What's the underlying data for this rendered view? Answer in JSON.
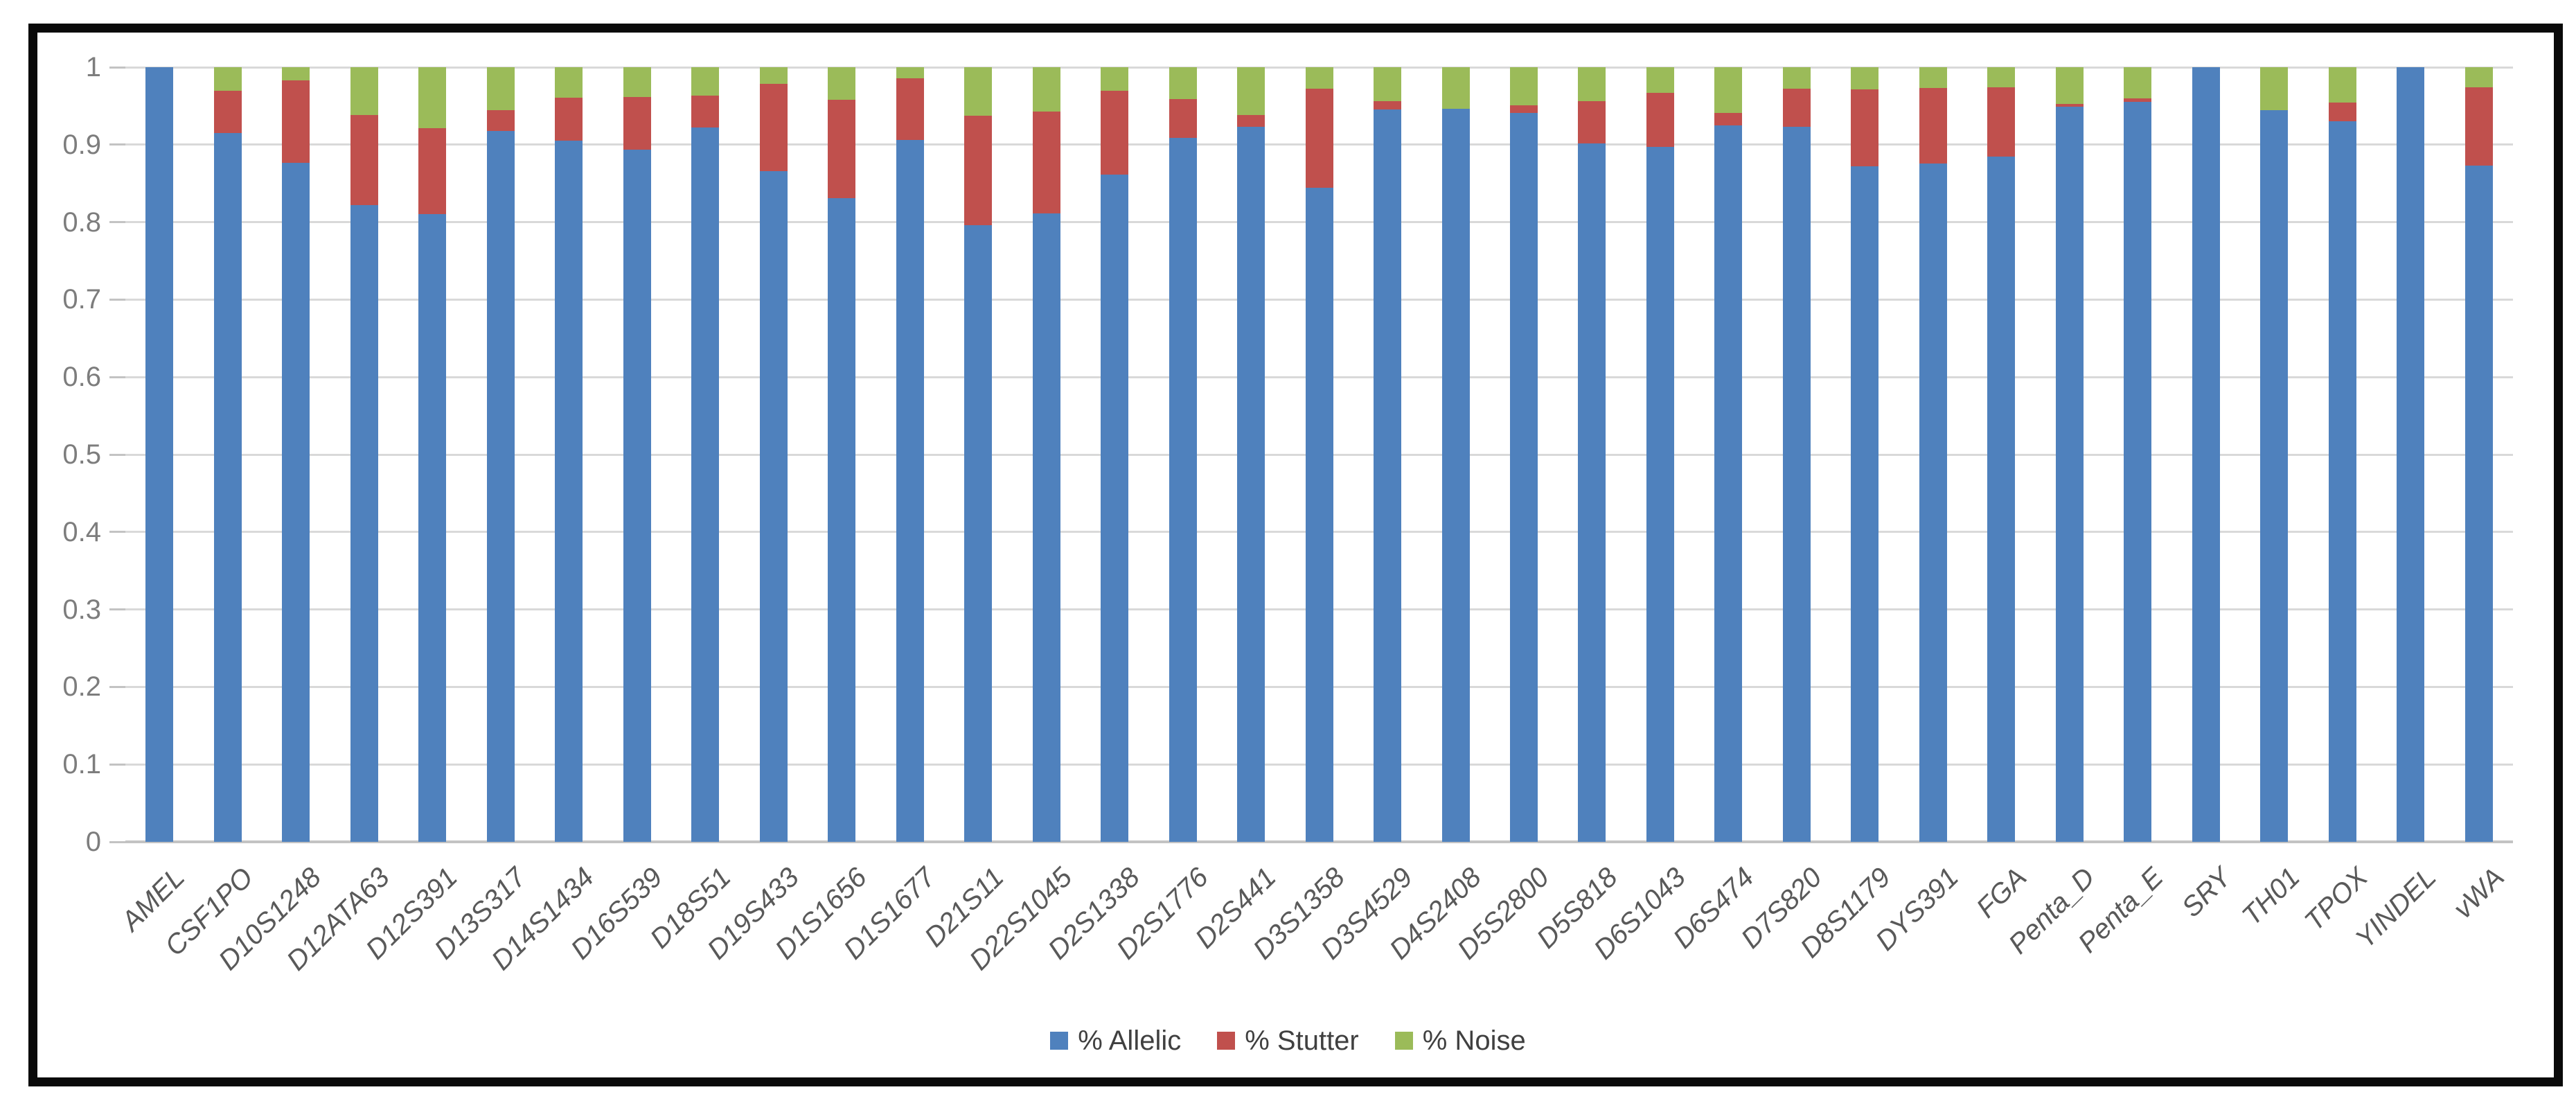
{
  "chart_data": {
    "type": "bar",
    "stacked": true,
    "title": "",
    "xlabel": "",
    "ylabel": "",
    "ylim": [
      0,
      1
    ],
    "grid": true,
    "legend_position": "bottom",
    "y_ticks": [
      "0",
      "0.1",
      "0.2",
      "0.3",
      "0.4",
      "0.5",
      "0.6",
      "0.7",
      "0.8",
      "0.9",
      "1"
    ],
    "categories": [
      "AMEL",
      "CSF1PO",
      "D10S1248",
      "D12ATA63",
      "D12S391",
      "D13S317",
      "D14S1434",
      "D16S539",
      "D18S51",
      "D19S433",
      "D1S1656",
      "D1S1677",
      "D21S11",
      "D22S1045",
      "D2S1338",
      "D2S1776",
      "D2S441",
      "D3S1358",
      "D3S4529",
      "D4S2408",
      "D5S2800",
      "D5S818",
      "D6S1043",
      "D6S474",
      "D7S820",
      "D8S1179",
      "DYS391",
      "FGA",
      "Penta_D",
      "Penta_E",
      "SRY",
      "TH01",
      "TPOX",
      "YINDEL",
      "vWA"
    ],
    "series": [
      {
        "name": "% Allelic",
        "color": "#4F81BD",
        "values": [
          1.0,
          0.915,
          0.877,
          0.822,
          0.81,
          0.918,
          0.905,
          0.894,
          0.922,
          0.866,
          0.831,
          0.906,
          0.796,
          0.811,
          0.861,
          0.909,
          0.923,
          0.844,
          0.945,
          0.946,
          0.941,
          0.902,
          0.897,
          0.925,
          0.923,
          0.872,
          0.876,
          0.885,
          0.949,
          0.955,
          1.0,
          0.945,
          0.93,
          1.0,
          0.873
        ]
      },
      {
        "name": "% Stutter",
        "color": "#C0504D",
        "values": [
          0.0,
          0.055,
          0.106,
          0.116,
          0.111,
          0.027,
          0.056,
          0.068,
          0.041,
          0.113,
          0.127,
          0.08,
          0.141,
          0.132,
          0.109,
          0.05,
          0.015,
          0.128,
          0.011,
          0.0,
          0.01,
          0.054,
          0.07,
          0.016,
          0.049,
          0.099,
          0.097,
          0.089,
          0.004,
          0.005,
          0.0,
          0.0,
          0.024,
          0.0,
          0.101
        ]
      },
      {
        "name": "% Noise",
        "color": "#9BBB59",
        "values": [
          0.0,
          0.03,
          0.017,
          0.062,
          0.079,
          0.055,
          0.039,
          0.038,
          0.037,
          0.021,
          0.042,
          0.014,
          0.063,
          0.057,
          0.03,
          0.041,
          0.062,
          0.028,
          0.044,
          0.054,
          0.049,
          0.044,
          0.033,
          0.059,
          0.028,
          0.029,
          0.027,
          0.026,
          0.047,
          0.04,
          0.0,
          0.055,
          0.046,
          0.0,
          0.026
        ]
      }
    ]
  },
  "colors": {
    "allelic_blue": "#4F81BD",
    "stutter_red": "#C0504D",
    "noise_green": "#9BBB59",
    "gridline": "#d9d9d9",
    "axis_line": "#c3c3c3",
    "y_label_text": "#7d7d7d",
    "x_label_text": "#595959",
    "legend_text": "#404040",
    "frame_border": "#0a0a0a",
    "background": "#ffffff"
  }
}
